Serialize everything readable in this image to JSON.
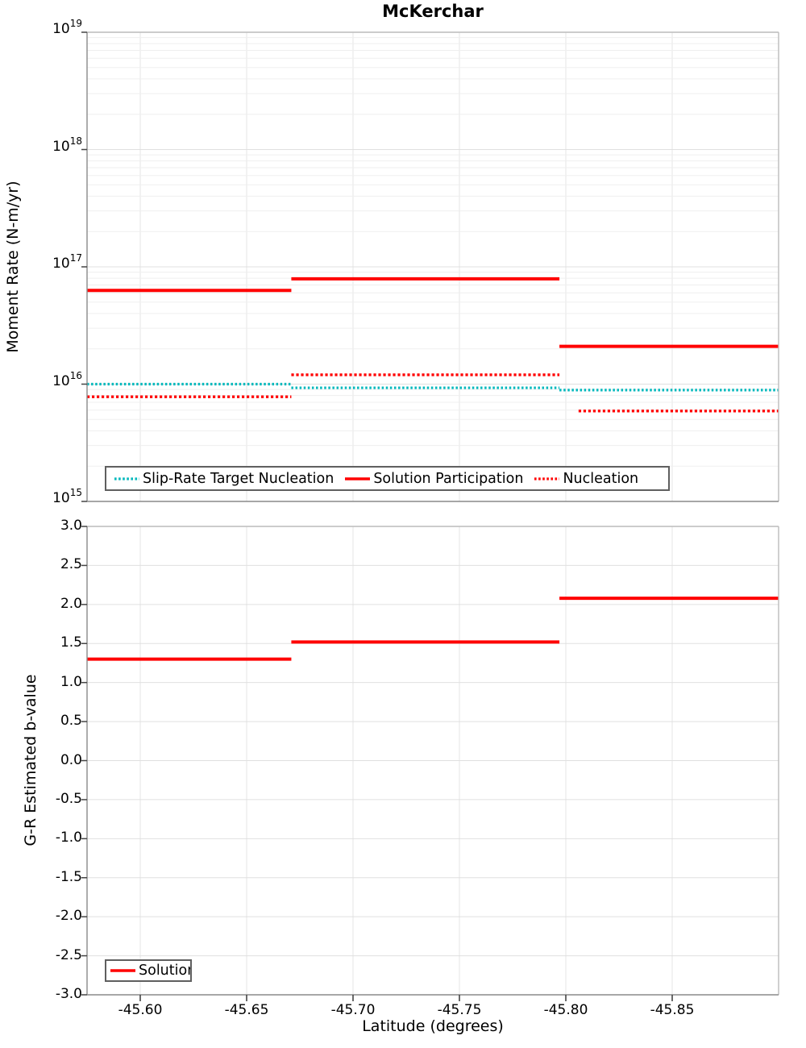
{
  "title": "McKerchar",
  "colors": {
    "red": "#ff0000",
    "teal": "#00b8bc",
    "grid_major": "#e0e0e0",
    "grid_minor": "#efefef",
    "grid_vertical": "#e4e4e4",
    "spine_dark": "#8a8a8a",
    "spine_light": "#bcbcbc",
    "tick": "#444444",
    "legend_border": "#5f5f5f",
    "text": "#000000"
  },
  "chart_data": [
    {
      "type": "line",
      "title": "McKerchar",
      "ylabel": "Moment Rate (N-m/yr)",
      "yscale": "log",
      "ylim": [
        1000000000000000.0,
        1e+19
      ],
      "xlim": [
        -45.575,
        -45.9
      ],
      "grid": true,
      "legend_position": "lower left",
      "y_tick_labels": [
        "10^19",
        "10^18",
        "10^17",
        "10^16",
        "10^15"
      ],
      "y_tick_exponents": [
        19,
        18,
        17,
        16,
        15
      ],
      "x_ticks": [
        -45.6,
        -45.65,
        -45.7,
        -45.75,
        -45.8,
        -45.85
      ],
      "x_tick_labels_visible": false,
      "series": [
        {
          "name": "Slip-Rate Target Nucleation",
          "color": "teal",
          "style": "dotted",
          "segments": [
            {
              "x": [
                -45.575,
                -45.671
              ],
              "y": 1e+16
            },
            {
              "x": [
                -45.671,
                -45.797
              ],
              "y": 9300000000000000.0
            },
            {
              "x": [
                -45.797,
                -45.9
              ],
              "y": 8900000000000000.0
            }
          ]
        },
        {
          "name": "Solution Participation",
          "color": "red",
          "style": "solid",
          "segments": [
            {
              "x": [
                -45.575,
                -45.671
              ],
              "y": 6.3e+16
            },
            {
              "x": [
                -45.671,
                -45.797
              ],
              "y": 7.9e+16
            },
            {
              "x": [
                -45.797,
                -45.9
              ],
              "y": 2.1e+16
            }
          ]
        },
        {
          "name": "Nucleation",
          "color": "red",
          "style": "dotted",
          "segments": [
            {
              "x": [
                -45.575,
                -45.671
              ],
              "y": 7800000000000000.0
            },
            {
              "x": [
                -45.671,
                -45.797
              ],
              "y": 1.2e+16
            },
            {
              "x": [
                -45.806,
                -45.9
              ],
              "y": 5900000000000000.0
            }
          ]
        }
      ]
    },
    {
      "type": "line",
      "title": "",
      "ylabel": "G-R Estimated b-value",
      "xlabel": "Latitude (degrees)",
      "yscale": "linear",
      "ylim": [
        -3.0,
        3.0
      ],
      "xlim": [
        -45.575,
        -45.9
      ],
      "grid": true,
      "legend_position": "lower left",
      "y_tick_labels": [
        "3.0",
        "2.5",
        "2.0",
        "1.5",
        "1.0",
        "0.5",
        "0.0",
        "-0.5",
        "-1.0",
        "-1.5",
        "-2.0",
        "-2.5",
        "-3.0"
      ],
      "x_ticks": [
        -45.6,
        -45.65,
        -45.7,
        -45.75,
        -45.8,
        -45.85
      ],
      "x_tick_labels": [
        "-45.60",
        "-45.65",
        "-45.70",
        "-45.75",
        "-45.80",
        "-45.85"
      ],
      "series": [
        {
          "name": "Solution",
          "color": "red",
          "style": "solid",
          "segments": [
            {
              "x": [
                -45.575,
                -45.671
              ],
              "y": 1.3
            },
            {
              "x": [
                -45.671,
                -45.797
              ],
              "y": 1.52
            },
            {
              "x": [
                -45.797,
                -45.9
              ],
              "y": 2.08
            }
          ]
        }
      ]
    }
  ]
}
